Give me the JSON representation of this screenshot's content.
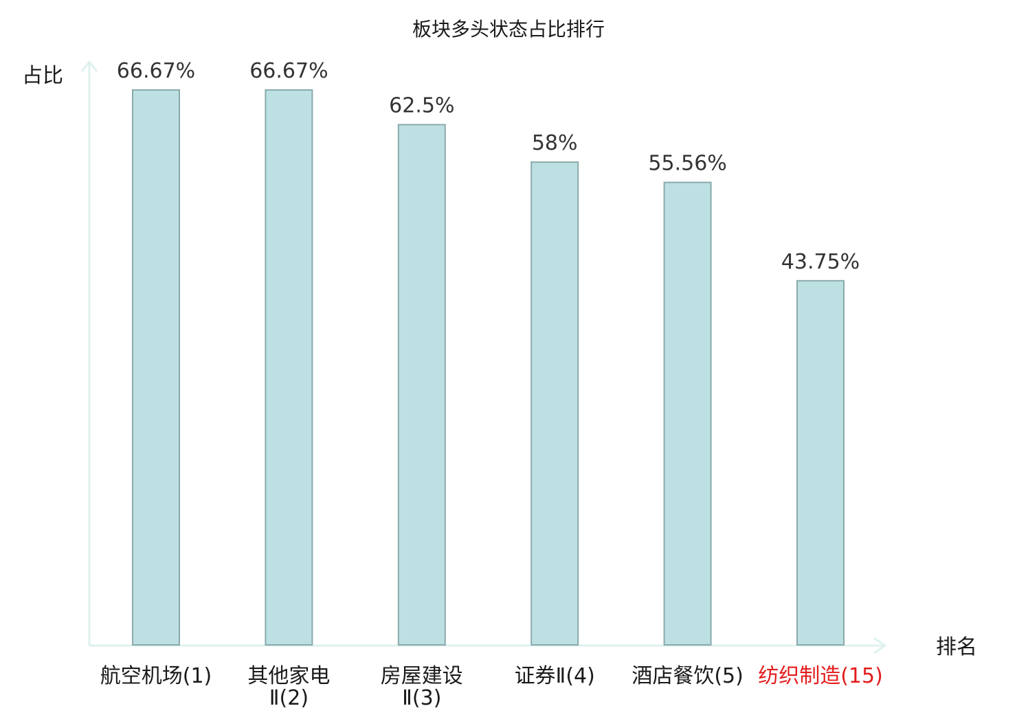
{
  "chart_data": {
    "type": "bar",
    "title": "板块多头状态占比排行",
    "ylabel": "占比",
    "xlabel": "排名",
    "unit": "%",
    "ylim": [
      0,
      70
    ],
    "grid": false,
    "legend": "none",
    "categories": [
      {
        "name_lines": [
          "航空机场(1)"
        ],
        "rank": "(1)",
        "value": 66.67,
        "value_label": "66.67%",
        "highlight": false
      },
      {
        "name_lines": [
          "其他家电",
          "Ⅱ(2)"
        ],
        "rank": "(2)",
        "value": 66.67,
        "value_label": "66.67%",
        "highlight": false
      },
      {
        "name_lines": [
          "房屋建设",
          "Ⅱ(3)"
        ],
        "rank": "(3)",
        "value": 62.5,
        "value_label": "62.5%",
        "highlight": false
      },
      {
        "name_lines": [
          "证券Ⅱ(4)"
        ],
        "rank": "(4)",
        "value": 58,
        "value_label": "58%",
        "highlight": false
      },
      {
        "name_lines": [
          "酒店餐饮(5)"
        ],
        "rank": "(5)",
        "value": 55.56,
        "value_label": "55.56%",
        "highlight": false
      },
      {
        "name_lines": [
          "纺织制造(15)"
        ],
        "rank": "(15)",
        "value": 43.75,
        "value_label": "43.75%",
        "highlight": true
      }
    ],
    "colors": {
      "bar_fill": "#bde1e3",
      "bar_stroke": "#8aa9ab",
      "axis": "#dff1ef",
      "highlight_text": "#e31b1b",
      "value_text": "#333333"
    }
  }
}
